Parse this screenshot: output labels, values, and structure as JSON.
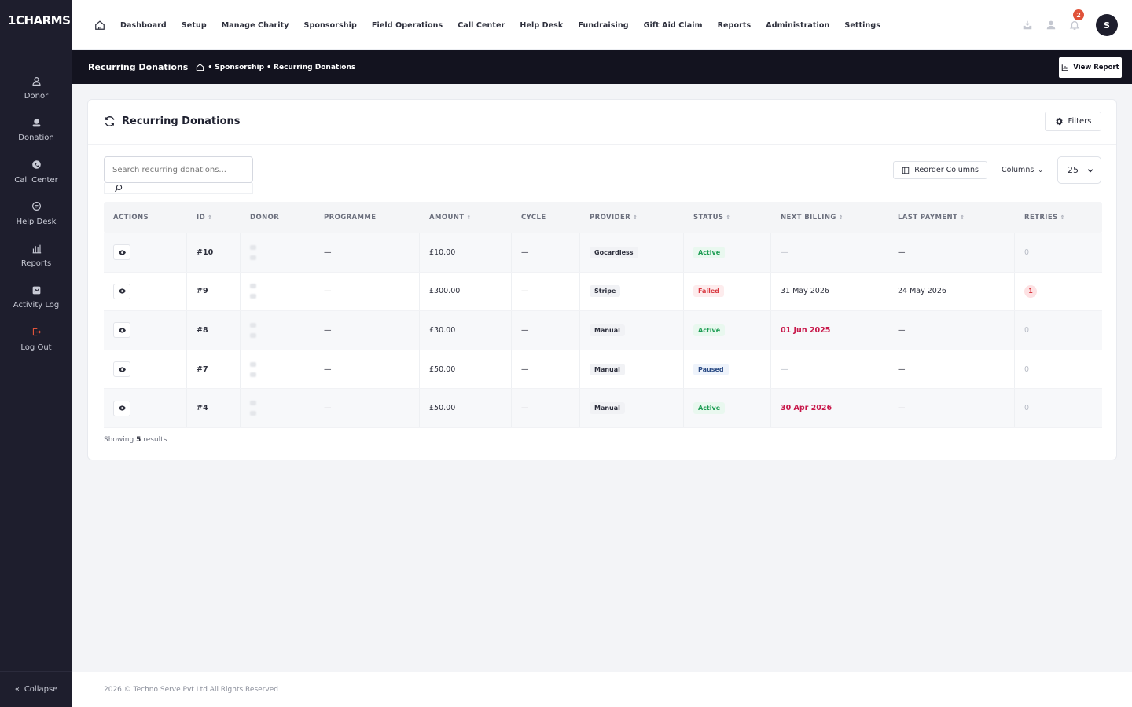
{
  "app": {
    "logo": "1CHARMS"
  },
  "sidebar": {
    "items": [
      {
        "label": "Donor",
        "icon": "user-icon"
      },
      {
        "label": "Donation",
        "icon": "donation-icon"
      },
      {
        "label": "Call Center",
        "icon": "phone-icon"
      },
      {
        "label": "Help Desk",
        "icon": "chat-icon"
      },
      {
        "label": "Reports",
        "icon": "bar-chart-icon"
      },
      {
        "label": "Activity Log",
        "icon": "log-icon"
      },
      {
        "label": "Log Out",
        "icon": "logout-icon"
      }
    ],
    "collapse_label": "Collapse"
  },
  "topnav": {
    "items": [
      "Dashboard",
      "Setup",
      "Manage Charity",
      "Sponsorship",
      "Field Operations",
      "Call Center",
      "Help Desk",
      "Fundraising",
      "Gift Aid Claim",
      "Reports",
      "Administration",
      "Settings"
    ],
    "notifications_count": "2",
    "avatar_initial": "S"
  },
  "subheader": {
    "title": "Recurring Donations",
    "breadcrumb": "• Sponsorship • Recurring Donations",
    "view_report_label": "View Report"
  },
  "card": {
    "title": "Recurring Donations",
    "filters_label": "Filters",
    "search_placeholder": "Search recurring donations...",
    "reorder_label": "Reorder Columns",
    "columns_label": "Columns",
    "page_size": "25",
    "showing_prefix": "Showing",
    "showing_count": "5",
    "showing_suffix": "results"
  },
  "table": {
    "headers": {
      "actions": "ACTIONS",
      "id": "ID",
      "donor": "DONOR",
      "programme": "PROGRAMME",
      "amount": "AMOUNT",
      "cycle": "CYCLE",
      "provider": "PROVIDER",
      "status": "STATUS",
      "next_billing": "NEXT BILLING",
      "last_payment": "LAST PAYMENT",
      "retries": "RETRIES"
    },
    "rows": [
      {
        "id": "#10",
        "programme": "—",
        "amount": "£10.00",
        "cycle": "—",
        "provider": "Gocardless",
        "status": "Active",
        "next_billing": "—",
        "last_payment": "—",
        "retries": "0"
      },
      {
        "id": "#9",
        "programme": "—",
        "amount": "£300.00",
        "cycle": "—",
        "provider": "Stripe",
        "status": "Failed",
        "next_billing": "31 May 2026",
        "last_payment": "24 May 2026",
        "retries": "1"
      },
      {
        "id": "#8",
        "programme": "—",
        "amount": "£30.00",
        "cycle": "—",
        "provider": "Manual",
        "status": "Active",
        "next_billing": "01 Jun 2025",
        "last_payment": "—",
        "retries": "0"
      },
      {
        "id": "#7",
        "programme": "—",
        "amount": "£50.00",
        "cycle": "—",
        "provider": "Manual",
        "status": "Paused",
        "next_billing": "—",
        "last_payment": "—",
        "retries": "0"
      },
      {
        "id": "#4",
        "programme": "—",
        "amount": "£50.00",
        "cycle": "—",
        "provider": "Manual",
        "status": "Active",
        "next_billing": "30 Apr 2026",
        "last_payment": "—",
        "retries": "0"
      }
    ]
  },
  "footer": {
    "text": "2026 © Techno Serve Pvt Ltd   All Rights Reserved"
  },
  "colors": {
    "sidebar_bg": "#1e1e2d",
    "subheader_bg": "#13131f",
    "active": "#1c9b52",
    "failed": "#d8373f",
    "overdue": "#c8184a",
    "badge": "#e0533a"
  }
}
